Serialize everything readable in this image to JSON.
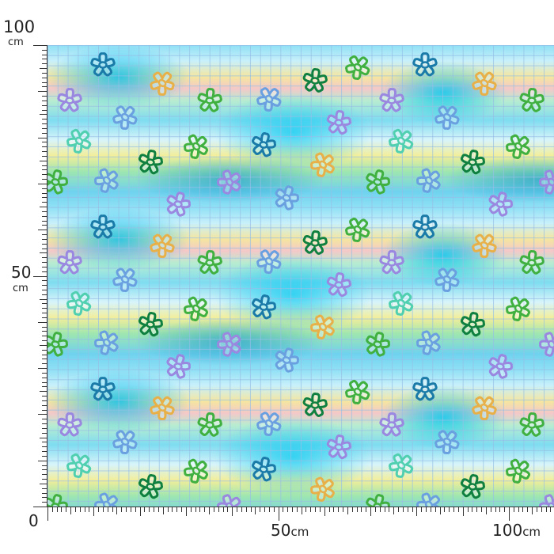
{
  "ruler": {
    "vertical": {
      "top_value": "100",
      "top_unit": "cm",
      "mid_value": "50",
      "mid_unit": "cm",
      "origin": "0"
    },
    "horizontal": {
      "mid_label": "50",
      "mid_unit": "cm",
      "end_label": "100",
      "end_unit": "cm"
    }
  },
  "pattern": {
    "motif": "outlined flower",
    "background": "watercolor tie-dye with grid",
    "flower_colors": {
      "teal": "#1a7aa8",
      "orange": "#e8b048",
      "purple": "#9a88e0",
      "lightblue": "#6aa0e0",
      "green": "#40b040",
      "darkgreen": "#108040",
      "mint": "#50d0b0"
    }
  }
}
